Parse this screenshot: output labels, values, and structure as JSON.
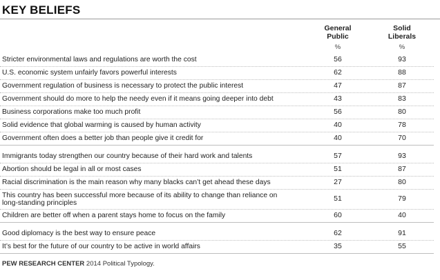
{
  "chart_data": {
    "type": "table",
    "title": "KEY BELIEFS",
    "columns": [
      {
        "name": "General Public",
        "line1": "General",
        "line2": "Public",
        "unit": "%"
      },
      {
        "name": "Solid Liberals",
        "line1": "Solid",
        "line2": "Liberals",
        "unit": "%"
      }
    ],
    "groups": [
      {
        "rows": [
          {
            "label": "Stricter environmental laws and regulations are worth the cost",
            "values": [
              56,
              93
            ]
          },
          {
            "label": "U.S. economic system unfairly favors powerful interests",
            "values": [
              62,
              88
            ]
          },
          {
            "label": "Government regulation of business is necessary to protect the public interest",
            "values": [
              47,
              87
            ]
          },
          {
            "label": "Government should do more to help the needy even if it means going deeper into debt",
            "values": [
              43,
              83
            ]
          },
          {
            "label": "Business corporations make too much profit",
            "values": [
              56,
              80
            ]
          },
          {
            "label": "Solid evidence that global warming is caused by human activity",
            "values": [
              40,
              78
            ]
          },
          {
            "label": "Government often does a better job than people  give it credit for",
            "values": [
              40,
              70
            ]
          }
        ]
      },
      {
        "rows": [
          {
            "label": "Immigrants today strengthen our country because of their hard work and talents",
            "values": [
              57,
              93
            ]
          },
          {
            "label": "Abortion should be legal in all or most cases",
            "values": [
              51,
              87
            ]
          },
          {
            "label": "Racial discrimination is the main reason why many blacks can’t get ahead these days",
            "values": [
              27,
              80
            ]
          },
          {
            "label": "This country has been successful more because of its ability to change than reliance on long-standing principles",
            "values": [
              51,
              79
            ]
          },
          {
            "label": "Children are better off when a parent stays home to focus on the family",
            "values": [
              60,
              40
            ]
          }
        ]
      },
      {
        "rows": [
          {
            "label": "Good diplomacy is the best way to ensure peace",
            "values": [
              62,
              91
            ]
          },
          {
            "label": "It’s best for the future of our country to be active in world affairs",
            "values": [
              35,
              55
            ]
          }
        ]
      }
    ]
  },
  "source": {
    "org": "PEW RESEARCH CENTER",
    "rest": " 2014 Political Typology."
  }
}
